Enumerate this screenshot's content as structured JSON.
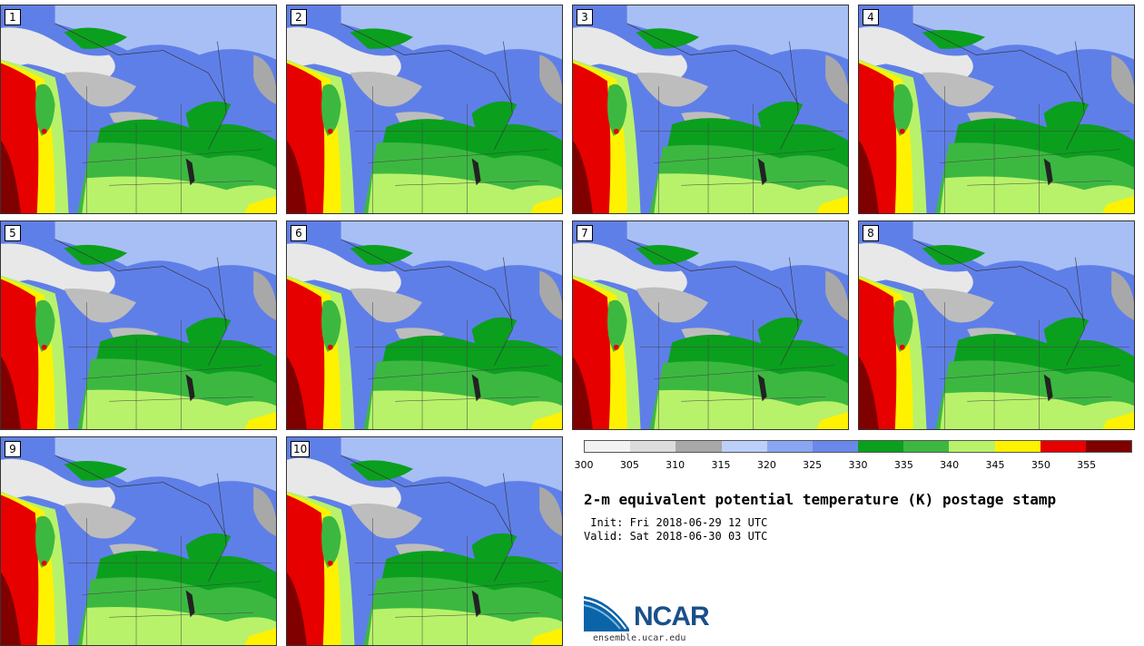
{
  "panels": [
    {
      "label": "1"
    },
    {
      "label": "2"
    },
    {
      "label": "3"
    },
    {
      "label": "4"
    },
    {
      "label": "5"
    },
    {
      "label": "6"
    },
    {
      "label": "7"
    },
    {
      "label": "8"
    },
    {
      "label": "9"
    },
    {
      "label": "10"
    }
  ],
  "colorbar": {
    "colors": [
      "#f2f2f2",
      "#dcdcdc",
      "#a8a8a8",
      "#bcd0fa",
      "#8aa6f2",
      "#6a88ea",
      "#0b9f1e",
      "#3cb841",
      "#b8f26a",
      "#fff200",
      "#e60000",
      "#800000"
    ],
    "ticks": [
      "300",
      "305",
      "310",
      "315",
      "320",
      "325",
      "330",
      "335",
      "340",
      "345",
      "350",
      "355"
    ]
  },
  "title": "2-m equivalent potential temperature (K) postage stamp",
  "init": " Init: Fri 2018-06-29 12 UTC",
  "valid": "Valid: Sat 2018-06-30 03 UTC",
  "logo_text": "NCAR",
  "site": "ensemble.ucar.edu"
}
